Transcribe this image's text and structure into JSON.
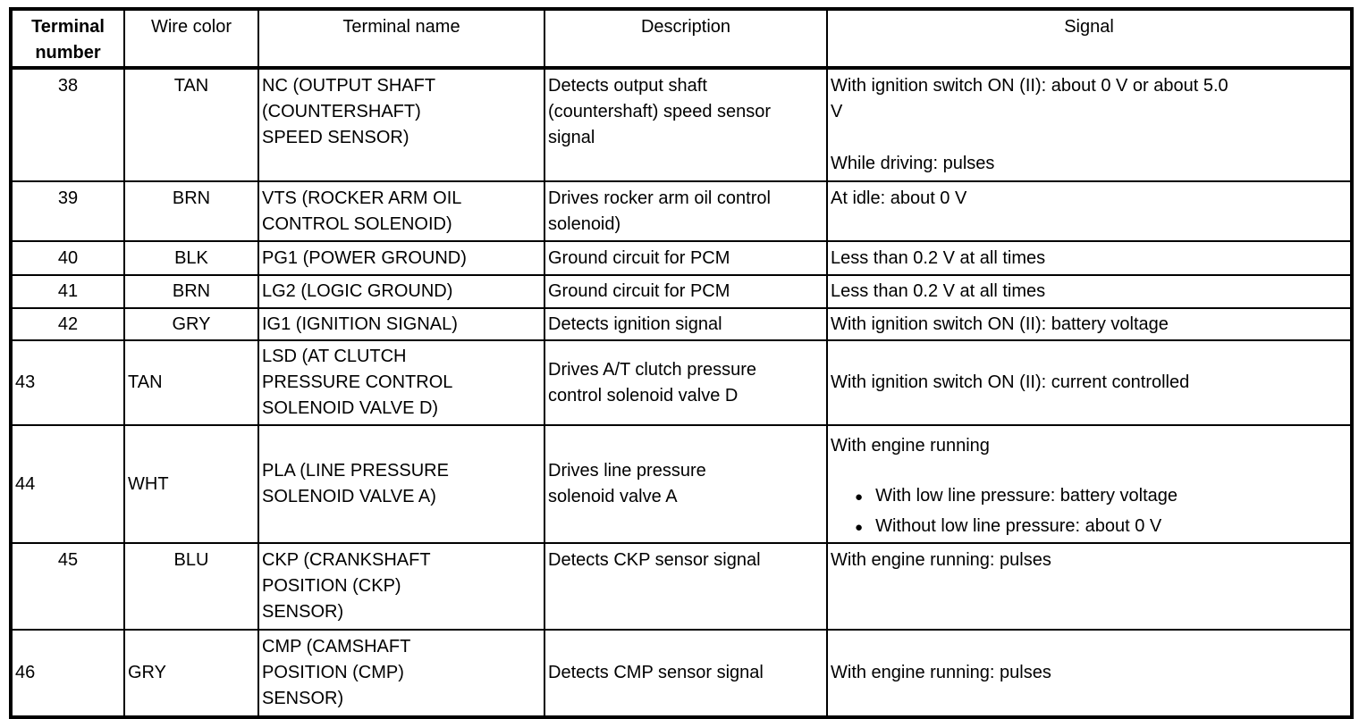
{
  "colors": {
    "text": "#000000",
    "border": "#000000",
    "background": "#ffffff"
  },
  "table": {
    "headers": {
      "terminal_number": "Terminal number",
      "wire_color": "Wire color",
      "terminal_name": "Terminal name",
      "description": "Description",
      "signal": "Signal"
    },
    "rows": [
      {
        "terminal_number": "38",
        "wire_color": "TAN",
        "terminal_name": "NC (OUTPUT SHAFT\n(COUNTERSHAFT)\nSPEED SENSOR)",
        "description": "Detects output shaft\n(countershaft) speed sensor\nsignal",
        "signal": "With ignition switch ON (II): about 0 V or about 5.0\nV\n\nWhile driving: pulses"
      },
      {
        "terminal_number": "39",
        "wire_color": "BRN",
        "terminal_name": "VTS (ROCKER ARM OIL\nCONTROL SOLENOID)",
        "description": "Drives rocker arm oil control\nsolenoid)",
        "signal": "At idle: about 0 V"
      },
      {
        "terminal_number": "40",
        "wire_color": "BLK",
        "terminal_name": "PG1 (POWER GROUND)",
        "description": "Ground circuit for PCM",
        "signal": "Less than 0.2 V at all times"
      },
      {
        "terminal_number": "41",
        "wire_color": "BRN",
        "terminal_name": "LG2 (LOGIC GROUND)",
        "description": "Ground circuit for PCM",
        "signal": "Less than 0.2 V at all times"
      },
      {
        "terminal_number": "42",
        "wire_color": "GRY",
        "terminal_name": "IG1 (IGNITION SIGNAL)",
        "description": "Detects ignition signal",
        "signal": "With ignition switch ON (II): battery voltage"
      },
      {
        "terminal_number": "43",
        "wire_color": "TAN",
        "terminal_name": "LSD (AT CLUTCH\nPRESSURE CONTROL\nSOLENOID VALVE D)",
        "description": "Drives A/T clutch pressure\ncontrol solenoid valve D",
        "signal": "With ignition switch ON (II): current controlled"
      },
      {
        "terminal_number": "44",
        "wire_color": "WHT",
        "terminal_name": "PLA (LINE PRESSURE\nSOLENOID VALVE A)",
        "description": "Drives line pressure\nsolenoid valve A",
        "signal_intro": "With engine running",
        "signal_bullets": [
          "With low line pressure: battery voltage",
          "Without low line pressure: about 0 V"
        ]
      },
      {
        "terminal_number": "45",
        "wire_color": "BLU",
        "terminal_name": "CKP (CRANKSHAFT\nPOSITION (CKP)\nSENSOR)",
        "description": "Detects CKP sensor signal",
        "signal": "With engine running: pulses"
      },
      {
        "terminal_number": "46",
        "wire_color": "GRY",
        "terminal_name": "CMP (CAMSHAFT\nPOSITION (CMP)\nSENSOR)",
        "description": "Detects CMP sensor signal",
        "signal": "With engine running: pulses"
      }
    ]
  }
}
